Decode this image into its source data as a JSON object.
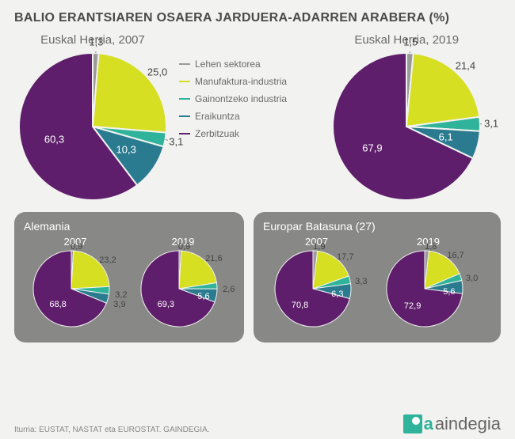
{
  "title": "BALIO ERANTSIAREN OSAERA JARDUERA-ADARREN ARABERA (%)",
  "colors": {
    "lehen": "#9a9a98",
    "manufaktura": "#d7df23",
    "gainontzeko": "#2fb39a",
    "eraikuntza": "#2a7b8f",
    "zerbitzuak": "#5e1e6b"
  },
  "legend": {
    "lehen": "Lehen sektorea",
    "manufaktura": "Manufaktura-industria",
    "gainontzeko": "Gainontzeko industria",
    "eraikuntza": "Eraikuntza",
    "zerbitzuak": "Zerbitzuak"
  },
  "eh2007": {
    "title": "Euskal Herria, 2007",
    "vals": {
      "lehen": 1.3,
      "manufaktura": 25.0,
      "gainontzeko": 3.1,
      "eraikuntza": 10.3,
      "zerbitzuak": 60.3
    },
    "labels": {
      "lehen": "1,3",
      "manufaktura": "25,0",
      "gainontzeko": "3,1",
      "eraikuntza": "10,3",
      "zerbitzuak": "60,3"
    }
  },
  "eh2019": {
    "title": "Euskal Herria, 2019",
    "vals": {
      "lehen": 1.5,
      "manufaktura": 21.4,
      "gainontzeko": 3.1,
      "eraikuntza": 6.1,
      "zerbitzuak": 67.9
    },
    "labels": {
      "lehen": "1,5",
      "manufaktura": "21,4",
      "gainontzeko": "3,1",
      "eraikuntza": "6,1",
      "zerbitzuak": "67,9"
    }
  },
  "alemania": {
    "title": "Alemania",
    "y2007": {
      "year": "2007",
      "vals": {
        "lehen": 0.9,
        "manufaktura": 23.2,
        "gainontzeko": 3.2,
        "eraikuntza": 3.9,
        "zerbitzuak": 68.8
      },
      "labels": {
        "lehen": "0,9",
        "manufaktura": "23,2",
        "gainontzeko": "3,2",
        "eraikuntza": "3,9",
        "zerbitzuak": "68,8"
      }
    },
    "y2019": {
      "year": "2019",
      "vals": {
        "lehen": 0.9,
        "manufaktura": 21.6,
        "gainontzeko": 2.6,
        "eraikuntza": 5.6,
        "zerbitzuak": 69.3
      },
      "labels": {
        "lehen": "0,9",
        "manufaktura": "21,6",
        "gainontzeko": "2,6",
        "eraikuntza": "5,6",
        "zerbitzuak": "69,3"
      }
    }
  },
  "eu27": {
    "title": "Europar Batasuna (27)",
    "y2007": {
      "year": "2007",
      "vals": {
        "lehen": 1.9,
        "manufaktura": 17.7,
        "gainontzeko": 3.3,
        "eraikuntza": 6.3,
        "zerbitzuak": 70.8
      },
      "labels": {
        "lehen": "1,9",
        "manufaktura": "17,7",
        "gainontzeko": "3,3",
        "eraikuntza": "6,3",
        "zerbitzuak": "70,8"
      }
    },
    "y2019": {
      "year": "2019",
      "vals": {
        "lehen": 1.8,
        "manufaktura": 16.7,
        "gainontzeko": 3.0,
        "eraikuntza": 5.6,
        "zerbitzuak": 72.9
      },
      "labels": {
        "lehen": "1,8",
        "manufaktura": "16,7",
        "gainontzeko": "3,0",
        "eraikuntza": "5,6",
        "zerbitzuak": "72,9"
      }
    }
  },
  "source": "Iturria: EUSTAT, NASTAT eta EUROSTAT. GAINDEGIA.",
  "logo": {
    "pre": "g",
    "rest": "aindegia",
    "accent": "a"
  }
}
